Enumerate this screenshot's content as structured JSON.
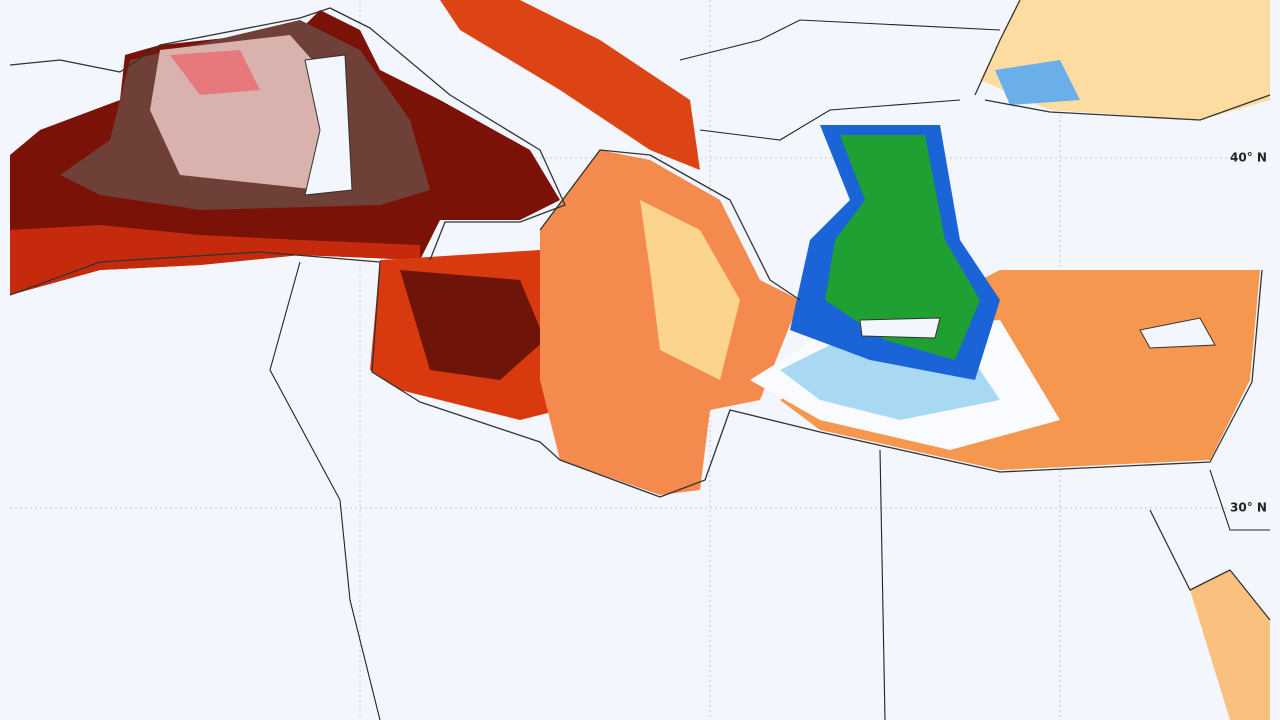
{
  "map": {
    "lat_labels": [
      "40° N",
      "30° N"
    ]
  }
}
